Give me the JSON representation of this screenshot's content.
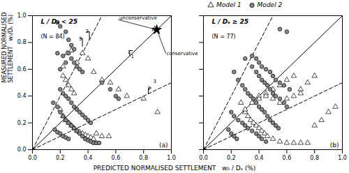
{
  "chart_data": [
    {
      "type": "scatter",
      "title": "L / Dₛ < 25",
      "subtitle": "(N = 84)",
      "xlabel": "PREDICTED NORMALISED SETTLEMENT   w₀ / Dₛ (%)",
      "ylabel": "MEASURED NORMALISED\nSETTLEMENT   w₀/Dₛ (%)",
      "xlim": [
        0.0,
        1.0
      ],
      "ylim": [
        0.0,
        1.0
      ],
      "xticks": [
        {
          "value": 0,
          "label": "0.0"
        },
        0.2,
        0.4,
        0.6,
        0.8,
        {
          "value": 1,
          "label": "1.0"
        }
      ],
      "yticks": [
        {
          "value": 0,
          "label": "0.0"
        },
        0.2,
        0.4,
        0.6,
        0.8,
        {
          "value": 1,
          "label": "1.0"
        }
      ],
      "grid": false,
      "series": [
        {
          "type": "line",
          "line_style": "solid",
          "color": "#000000",
          "x": [
            0,
            1
          ],
          "values": [
            0,
            1
          ]
        },
        {
          "type": "line",
          "line_style": "dashed",
          "color": "#000000",
          "x": [
            0,
            0.5
          ],
          "values": [
            0,
            1
          ]
        },
        {
          "type": "line",
          "line_style": "dashed",
          "color": "#000000",
          "x": [
            0,
            1
          ],
          "values": [
            0,
            0.5
          ]
        },
        {
          "type": "scatter",
          "marker": "triangle",
          "color": "#ffffff",
          "x": [
            0.22,
            0.25,
            0.28,
            0.32,
            0.36,
            0.4,
            0.44,
            0.5,
            0.56,
            0.62,
            0.68,
            0.8,
            0.2,
            0.22,
            0.24,
            0.26,
            0.28,
            0.3,
            0.32,
            0.34,
            0.36,
            0.38,
            0.4,
            0.42,
            0.44,
            0.46,
            0.5,
            0.55,
            0.9,
            0.22,
            0.24,
            0.26,
            0.28,
            0.3,
            0.88
          ],
          "values": [
            0.62,
            0.72,
            0.74,
            0.65,
            0.72,
            0.68,
            0.58,
            0.52,
            0.5,
            0.45,
            0.4,
            0.38,
            0.3,
            0.25,
            0.22,
            0.2,
            0.18,
            0.16,
            0.14,
            0.13,
            0.12,
            0.11,
            0.1,
            0.09,
            0.08,
            0.12,
            0.1,
            0.1,
            0.28,
            0.55,
            0.52,
            0.48,
            0.45,
            0.42,
            0.9
          ]
        },
        {
          "type": "scatter",
          "marker": "circle",
          "color": "#888888",
          "x": [
            0.18,
            0.2,
            0.24,
            0.26,
            0.28,
            0.3,
            0.26,
            0.28,
            0.3,
            0.32,
            0.34,
            0.36,
            0.22,
            0.24,
            0.2,
            0.18,
            0.15,
            0.18,
            0.2,
            0.22,
            0.24,
            0.26,
            0.28,
            0.3,
            0.32,
            0.34,
            0.36,
            0.38,
            0.4,
            0.42,
            0.44,
            0.46,
            0.48,
            0.2,
            0.22,
            0.24,
            0.26,
            0.28,
            0.3,
            0.32,
            0.34,
            0.36,
            0.38,
            0.4,
            0.42,
            0.5,
            0.6,
            0.56,
            0.62,
            0.16,
            0.18,
            0.2,
            0.22,
            0.24,
            0.26
          ],
          "values": [
            0.95,
            0.92,
            0.88,
            0.82,
            0.78,
            0.75,
            0.72,
            0.68,
            0.65,
            0.62,
            0.6,
            0.58,
            0.7,
            0.65,
            0.6,
            0.72,
            0.35,
            0.32,
            0.28,
            0.25,
            0.22,
            0.2,
            0.18,
            0.16,
            0.14,
            0.12,
            0.1,
            0.08,
            0.07,
            0.06,
            0.05,
            0.05,
            0.05,
            0.45,
            0.42,
            0.4,
            0.38,
            0.35,
            0.32,
            0.3,
            0.28,
            0.26,
            0.24,
            0.22,
            0.2,
            0.5,
            0.4,
            0.45,
            0.38,
            0.15,
            0.13,
            0.12,
            0.1,
            0.09,
            0.08
          ]
        },
        {
          "type": "scatter",
          "marker": "star",
          "color": "#000000",
          "x": [
            0.895
          ],
          "values": [
            0.895
          ]
        },
        {
          "type": "line",
          "line_style": "solid",
          "color": "#000000",
          "x": [
            0.39,
            0.41,
            0.41
          ],
          "values": [
            0.88,
            0.88,
            0.82
          ]
        },
        {
          "type": "line",
          "line_style": "solid",
          "color": "#000000",
          "x": [
            0.34,
            0.36,
            0.36
          ],
          "values": [
            0.83,
            0.83,
            0.77
          ]
        },
        {
          "type": "line",
          "line_style": "solid",
          "color": "#000000",
          "x": [
            0.72,
            0.7,
            0.7
          ],
          "values": [
            0.74,
            0.74,
            0.7
          ]
        },
        {
          "type": "line",
          "line_style": "solid",
          "color": "#000000",
          "x": [
            0.855,
            0.835,
            0.835
          ],
          "values": [
            0.46,
            0.46,
            0.42
          ]
        }
      ],
      "annotations": [
        {
          "text": "unconservative",
          "x": 0.62,
          "y": 0.97,
          "arrow_x": 0.895,
          "arrow_y": 0.895
        },
        {
          "text": "conservative",
          "x": 0.96,
          "y": 0.72,
          "arrow_x": 0.895,
          "arrow_y": 0.895
        },
        {
          "text": "2",
          "x": 0.395,
          "y": 0.885
        },
        {
          "text": "3",
          "x": 0.345,
          "y": 0.825
        },
        {
          "text": "1",
          "x": 0.695,
          "y": 0.73
        },
        {
          "text": "1",
          "x": 0.72,
          "y": 0.695
        },
        {
          "text": "2",
          "x": 0.84,
          "y": 0.455
        },
        {
          "text": "3",
          "x": 0.88,
          "y": 0.51
        },
        {
          "text": "(a)"
        }
      ]
    },
    {
      "type": "scatter",
      "title": "L / Dₛ ≥ 25",
      "subtitle": "(N = 77)",
      "xlim": [
        0.0,
        1.0
      ],
      "ylim": [
        0.0,
        1.0
      ],
      "xticks": [
        {
          "value": 0,
          "label": "0.0"
        },
        0.2,
        0.4,
        0.6,
        0.8,
        {
          "value": 1,
          "label": "1.0"
        }
      ],
      "yticks": [
        {
          "value": 0,
          "label": "0.0"
        },
        0.2,
        0.4,
        0.6,
        0.8,
        {
          "value": 1,
          "label": "1.0"
        }
      ],
      "tick_labels": "x",
      "grid": false,
      "legend": "top",
      "series": [
        {
          "type": "line",
          "line_style": "solid",
          "color": "#000000",
          "x": [
            0,
            1
          ],
          "values": [
            0,
            1
          ]
        },
        {
          "type": "line",
          "line_style": "dashed",
          "color": "#000000",
          "x": [
            0,
            0.5
          ],
          "values": [
            0,
            1
          ]
        },
        {
          "type": "line",
          "line_style": "dashed",
          "color": "#000000",
          "x": [
            0,
            1
          ],
          "values": [
            0,
            0.5
          ]
        },
        {
          "type": "scatter",
          "name": "Model 1",
          "marker": "triangle",
          "color": "#ffffff",
          "x": [
            0.27,
            0.3,
            0.32,
            0.34,
            0.36,
            0.38,
            0.4,
            0.42,
            0.44,
            0.46,
            0.5,
            0.55,
            0.6,
            0.65,
            0.7,
            0.75,
            0.8,
            0.85,
            0.9,
            0.95,
            0.4,
            0.45,
            0.5,
            0.55,
            0.6,
            0.65,
            0.7,
            0.75,
            0.8,
            0.3,
            0.35,
            0.4,
            0.45,
            0.5,
            0.55,
            0.6,
            0.65,
            0.7
          ],
          "values": [
            0.35,
            0.28,
            0.25,
            0.22,
            0.2,
            0.18,
            0.16,
            0.14,
            0.12,
            0.1,
            0.08,
            0.06,
            0.05,
            0.05,
            0.05,
            0.05,
            0.18,
            0.22,
            0.28,
            0.32,
            0.4,
            0.42,
            0.45,
            0.48,
            0.52,
            0.55,
            0.45,
            0.5,
            0.55,
            0.3,
            0.35,
            0.38,
            0.4,
            0.38,
            0.35,
            0.38,
            0.4,
            0.42
          ]
        },
        {
          "type": "scatter",
          "name": "Model 2",
          "marker": "circle",
          "color": "#888888",
          "x": [
            0.22,
            0.25,
            0.28,
            0.3,
            0.32,
            0.34,
            0.36,
            0.38,
            0.4,
            0.42,
            0.44,
            0.46,
            0.48,
            0.5,
            0.52,
            0.54,
            0.35,
            0.38,
            0.4,
            0.42,
            0.44,
            0.46,
            0.48,
            0.5,
            0.52,
            0.55,
            0.58,
            0.6,
            0.3,
            0.35,
            0.38,
            0.4,
            0.42,
            0.45,
            0.48,
            0.5,
            0.52,
            0.55,
            0.58,
            0.62,
            0.55,
            0.6,
            0.2,
            0.22,
            0.25,
            0.28,
            0.3,
            0.32,
            0.35,
            0.38,
            0.4,
            0.42,
            0.45,
            0.18,
            0.2,
            0.22,
            0.24
          ],
          "values": [
            0.58,
            0.52,
            0.48,
            0.45,
            0.42,
            0.4,
            0.38,
            0.35,
            0.32,
            0.3,
            0.28,
            0.25,
            0.22,
            0.2,
            0.18,
            0.16,
            0.62,
            0.58,
            0.55,
            0.52,
            0.5,
            0.48,
            0.45,
            0.42,
            0.4,
            0.38,
            0.35,
            0.32,
            0.68,
            0.7,
            0.68,
            0.65,
            0.62,
            0.6,
            0.58,
            0.55,
            0.52,
            0.5,
            0.48,
            0.45,
            0.9,
            0.88,
            0.28,
            0.25,
            0.22,
            0.2,
            0.18,
            0.16,
            0.14,
            0.12,
            0.1,
            0.08,
            0.06,
            0.15,
            0.12,
            0.1,
            0.08
          ]
        }
      ],
      "annotations": [
        {
          "text": "(b)"
        }
      ]
    }
  ]
}
